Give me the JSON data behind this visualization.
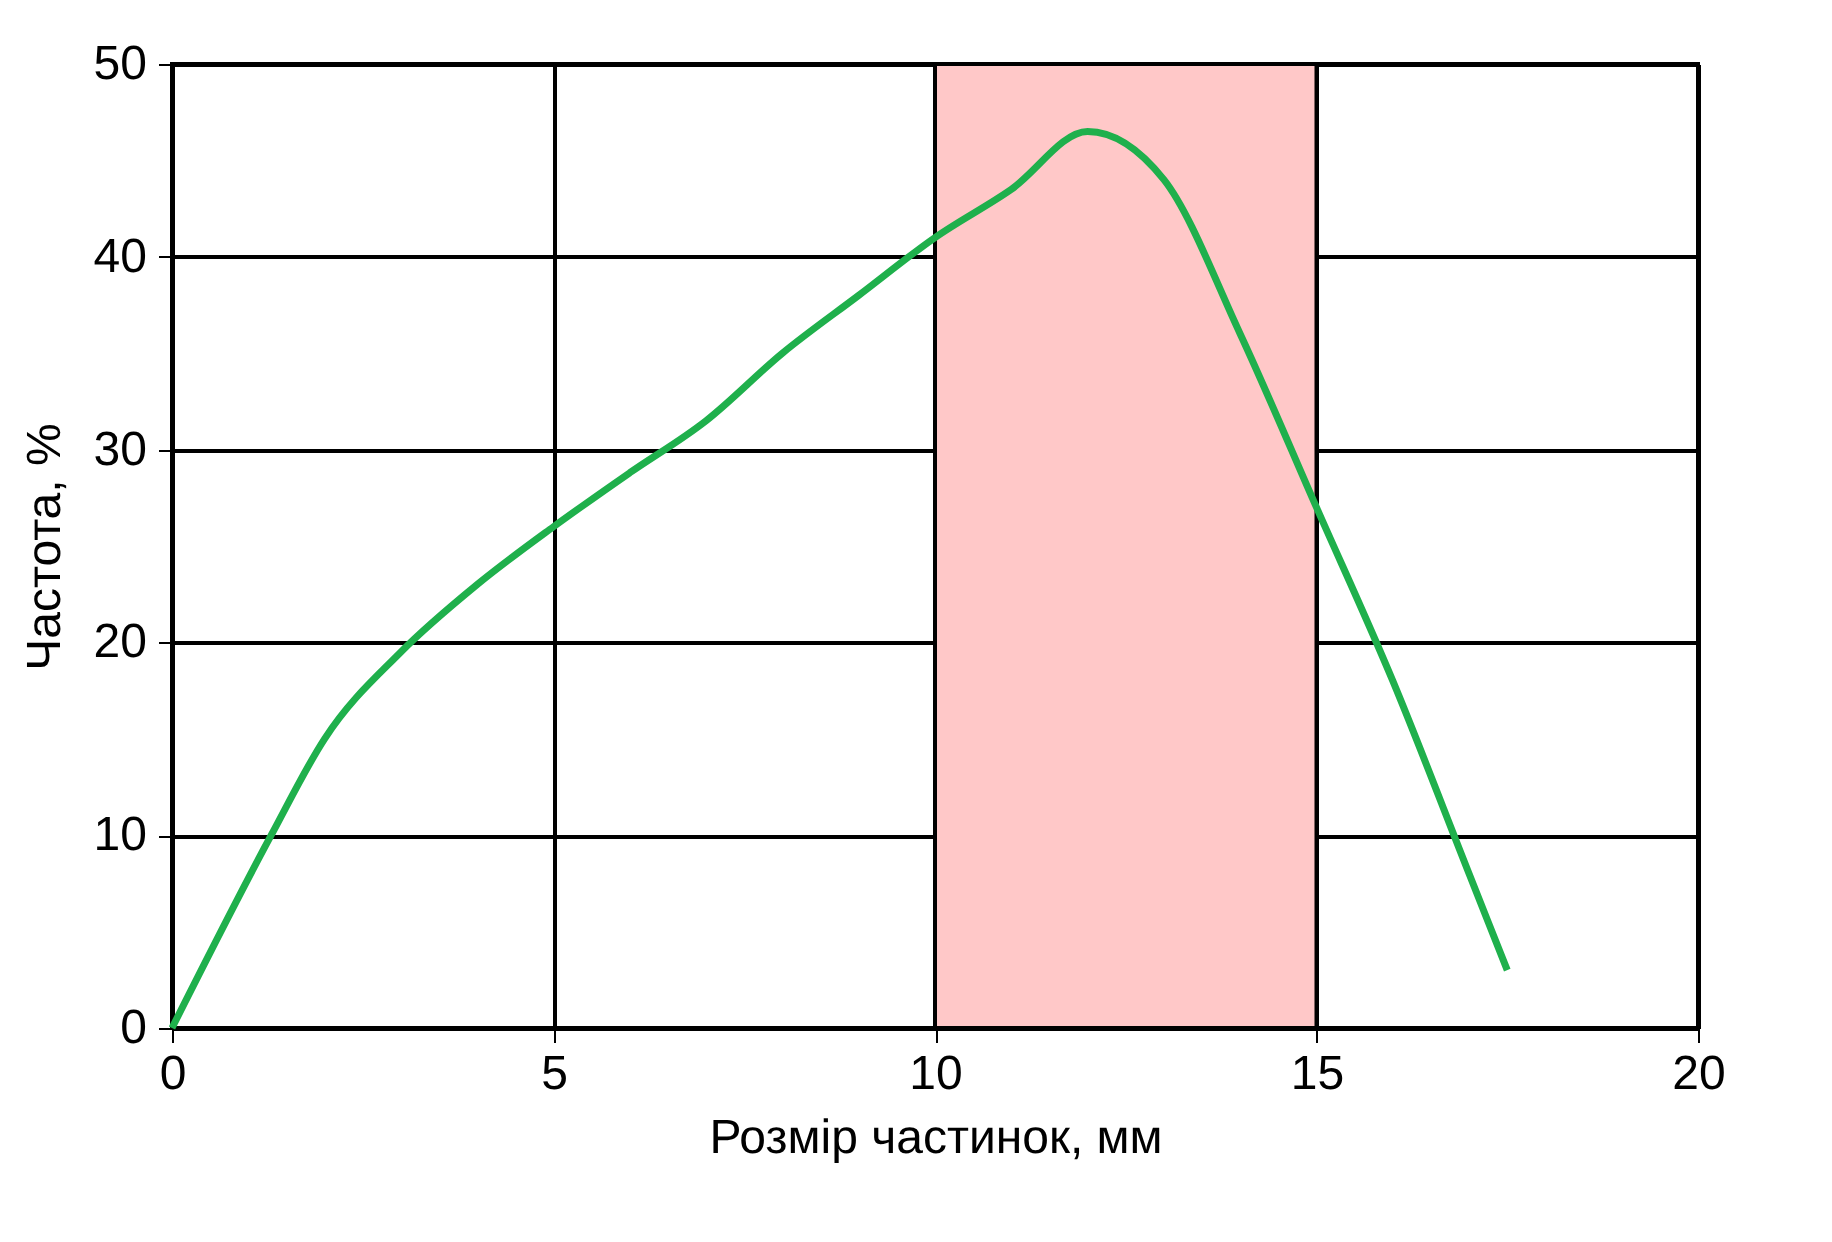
{
  "chart_data": {
    "type": "line",
    "xlabel": "Розмір частинок, мм",
    "ylabel": "Частота, %",
    "x": [
      0,
      1.3,
      2,
      3,
      4,
      5,
      6,
      7,
      8,
      9,
      10,
      11,
      12,
      13,
      14,
      15,
      16,
      17,
      17.5
    ],
    "series": [
      {
        "color": "#1fb04c",
        "values": [
          0,
          10,
          15,
          19.5,
          23,
          26,
          28.8,
          31.5,
          35,
          38,
          41,
          43.5,
          46.5,
          44,
          36,
          27,
          18,
          8,
          3
        ]
      }
    ],
    "xlim": [
      0,
      20
    ],
    "xticks": [
      0,
      5,
      10,
      15,
      20
    ],
    "ylim": [
      0,
      50
    ],
    "yticks": [
      0,
      10,
      20,
      30,
      40,
      50
    ],
    "grid": true,
    "marker": "none",
    "line_style": "solid",
    "bands": [
      {
        "axis": "x",
        "from": 10,
        "to": 15,
        "color": "#ffc8c8"
      }
    ]
  }
}
